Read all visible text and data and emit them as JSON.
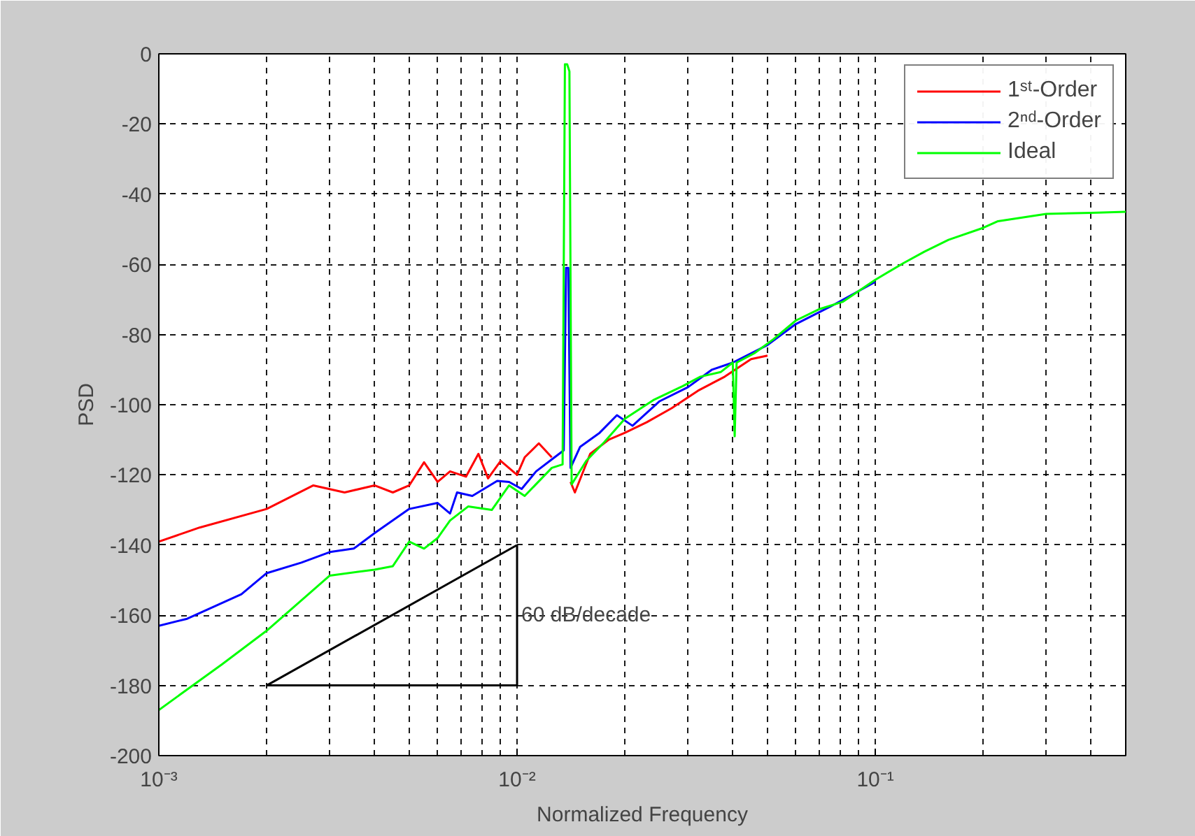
{
  "chart_data": {
    "type": "line",
    "xlabel": "Normalized Frequency",
    "ylabel": "PSD",
    "log": "x",
    "grid": true,
    "legend": "top right",
    "line_style": "solid",
    "xlim": [
      0.001,
      0.5
    ],
    "xticks": [
      {
        "value": 0.001,
        "label": "10⁻³"
      },
      {
        "value": 0.01,
        "label": "10⁻²"
      },
      {
        "value": 0.1,
        "label": "10⁻¹"
      }
    ],
    "ylim": [
      -200,
      0
    ],
    "yticks": [
      -200,
      -180,
      -160,
      -140,
      -120,
      -100,
      -80,
      -60,
      -40,
      -20,
      0
    ],
    "series": [
      {
        "name": "1ˢᵗ-Order",
        "color": "#ff0000",
        "x": [
          0.001,
          0.0013,
          0.002,
          0.0027,
          0.0033,
          0.004,
          0.0045,
          0.005,
          0.0055,
          0.006,
          0.0065,
          0.0072,
          0.0078,
          0.0083,
          0.009,
          0.01,
          0.0105,
          0.0115,
          0.0125,
          0.0137,
          0.0139,
          0.0141,
          0.0145,
          0.016,
          0.018,
          0.02,
          0.023,
          0.027,
          0.032,
          0.038,
          0.045,
          0.05
        ],
        "values": [
          -139,
          -135,
          -129.7,
          -123,
          -125,
          -123,
          -125,
          -123,
          -116.4,
          -122,
          -119,
          -120.5,
          -114,
          -121,
          -116,
          -120,
          -115,
          -111,
          -115,
          null,
          null,
          -122,
          -125,
          -114,
          -110,
          -108,
          -105,
          -101,
          -96,
          -92,
          -87,
          -86
        ]
      },
      {
        "name": "2ⁿᵈ-Order",
        "color": "#0000ff",
        "x": [
          0.001,
          0.0012,
          0.0017,
          0.002,
          0.0025,
          0.003,
          0.0035,
          0.004,
          0.005,
          0.006,
          0.0065,
          0.0068,
          0.0075,
          0.0088,
          0.0095,
          0.0103,
          0.0113,
          0.0125,
          0.0135,
          0.0137,
          0.0139,
          0.0141,
          0.015,
          0.017,
          0.019,
          0.021,
          0.025,
          0.03,
          0.035,
          0.04,
          0.05,
          0.06,
          0.075,
          0.1
        ],
        "values": [
          -163,
          -161,
          -154,
          -148,
          -145,
          -142,
          -141,
          -136.6,
          -129.7,
          -128,
          -131,
          -125,
          -126,
          -121.7,
          -122,
          -124,
          -119,
          -115.6,
          -113,
          -61,
          -61,
          -118,
          -112,
          -108,
          -103,
          -106,
          -99,
          -95,
          -90,
          -88,
          -83,
          -77,
          -72,
          -65
        ]
      },
      {
        "name": "Ideal",
        "color": "#00ff00",
        "x": [
          0.001,
          0.0015,
          0.002,
          0.003,
          0.004,
          0.0045,
          0.005,
          0.0055,
          0.006,
          0.0065,
          0.0073,
          0.0085,
          0.0095,
          0.0105,
          0.0125,
          0.0134,
          0.0136,
          0.0138,
          0.014,
          0.0142,
          0.0156,
          0.0175,
          0.02,
          0.024,
          0.029,
          0.0325,
          0.037,
          0.04,
          0.0405,
          0.041,
          0.046,
          0.052,
          0.06,
          0.07,
          0.081,
          0.1,
          0.12,
          0.137,
          0.16,
          0.2,
          0.22,
          0.3,
          0.4,
          0.5
        ],
        "values": [
          -187,
          -174,
          -164.4,
          -148.7,
          -147,
          -146,
          -139,
          -141,
          -138,
          -133,
          -129,
          -130,
          -123,
          -126,
          -118,
          -117,
          -3,
          -3,
          -5,
          -122.7,
          -116,
          -110.7,
          -104,
          -98.7,
          -94.7,
          -92,
          -90.7,
          -88,
          -109,
          -88,
          -85.3,
          -81.3,
          -76,
          -72.7,
          -70.7,
          -64.4,
          -59.6,
          -56.4,
          -53,
          -49.6,
          -47.7,
          -45.6,
          -45.3,
          -45
        ]
      },
      {
        "type": "line",
        "color": "#000000",
        "x": [
          0.002,
          0.01
        ],
        "values": [
          -180,
          -180
        ]
      },
      {
        "type": "line",
        "color": "#000000",
        "x": [
          0.01,
          0.01
        ],
        "values": [
          -180,
          -140
        ]
      },
      {
        "type": "line",
        "color": "#000000",
        "x": [
          0.002,
          0.01
        ],
        "values": [
          -180,
          -140
        ]
      }
    ],
    "annotations": [
      {
        "text": "60 dB/decade",
        "x": 0.01,
        "y": -160
      }
    ]
  }
}
